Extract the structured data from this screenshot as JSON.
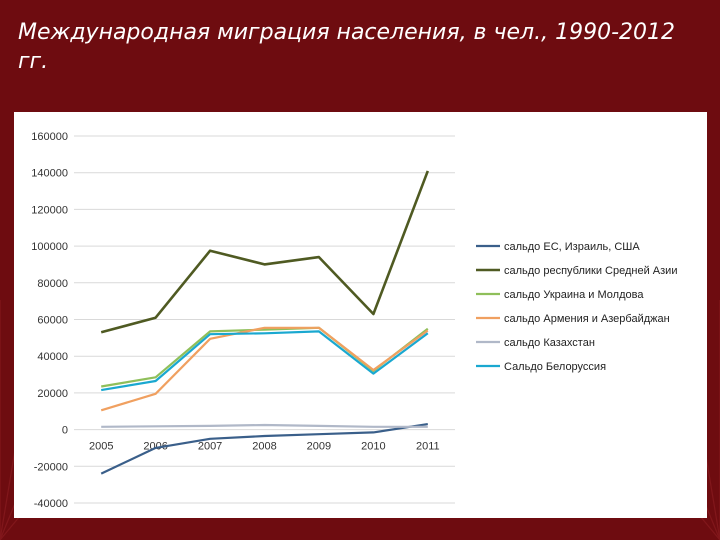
{
  "slide": {
    "title": "Международная миграция населения, в чел., 1990-2012 гг."
  },
  "colors": {
    "background": "#6e0c10",
    "panel": "#ffffff",
    "grid": "#d9d9d9"
  },
  "chart_data": {
    "type": "line",
    "title": "",
    "xlabel": "",
    "ylabel": "",
    "x": [
      "2005",
      "2006",
      "2007",
      "2008",
      "2009",
      "2010",
      "2011"
    ],
    "ylim": [
      -40000,
      160000
    ],
    "yticks": [
      -40000,
      -20000,
      0,
      20000,
      40000,
      60000,
      80000,
      100000,
      120000,
      140000,
      160000
    ],
    "ytick_labels": [
      "-40000",
      "-20000",
      "0",
      "20000",
      "40000",
      "60000",
      "80000",
      "100000",
      "120000",
      "140000",
      "160000"
    ],
    "grid": true,
    "legend_position": "right",
    "series": [
      {
        "name": "сальдо ЕС, Израиль, США",
        "color": "#3a5f8a",
        "values": [
          -24000,
          -10000,
          -5000,
          -3500,
          -2500,
          -1500,
          3000
        ]
      },
      {
        "name": "сальдо республики Средней Азии",
        "color": "#4f5a22",
        "values": [
          53000,
          61000,
          97500,
          90000,
          94000,
          63000,
          141000
        ]
      },
      {
        "name": "сальдо Украина и Молдова",
        "color": "#8fbf5a",
        "values": [
          23500,
          28500,
          53500,
          54500,
          55500,
          32000,
          55000
        ]
      },
      {
        "name": "сальдо Армения и Азербайджан",
        "color": "#f0a060",
        "values": [
          10500,
          19500,
          49500,
          55500,
          55500,
          32500,
          54000
        ]
      },
      {
        "name": "сальдо Казахстан",
        "color": "#b0b8c8",
        "values": [
          1500,
          1800,
          2000,
          2500,
          2000,
          1500,
          1500
        ]
      },
      {
        "name": "Сальдо Белоруссия",
        "color": "#1aa8d0",
        "values": [
          21500,
          26500,
          52000,
          52500,
          53500,
          30500,
          52500
        ]
      }
    ]
  }
}
